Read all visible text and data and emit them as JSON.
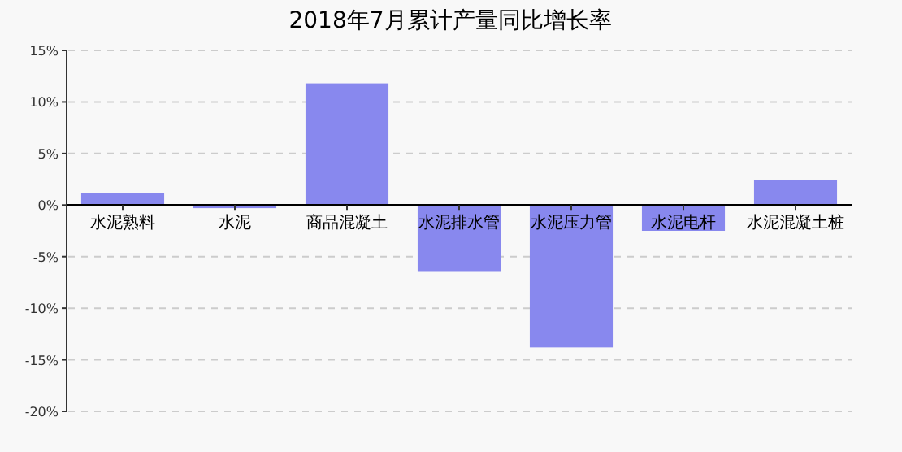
{
  "chart_data": {
    "type": "bar",
    "title": "2018年7月累计产量同比增长率",
    "categories": [
      "水泥熟料",
      "水泥",
      "商品混凝土",
      "水泥排水管",
      "水泥压力管",
      "水泥电杆",
      "水泥混凝土桩"
    ],
    "values": [
      1.2,
      -0.3,
      11.8,
      -6.4,
      -13.8,
      -2.5,
      2.4
    ],
    "color": "#8888ee",
    "ylim": [
      -20,
      15
    ],
    "yticks": [
      {
        "value": -20,
        "label": "-20%"
      },
      {
        "value": -15,
        "label": "-15%"
      },
      {
        "value": -10,
        "label": "-10%"
      },
      {
        "value": -5,
        "label": "-5%"
      },
      {
        "value": 0,
        "label": "0%"
      },
      {
        "value": 5,
        "label": "5%"
      },
      {
        "value": 10,
        "label": "10%"
      },
      {
        "value": 15,
        "label": "15%"
      }
    ],
    "grid": "y"
  }
}
